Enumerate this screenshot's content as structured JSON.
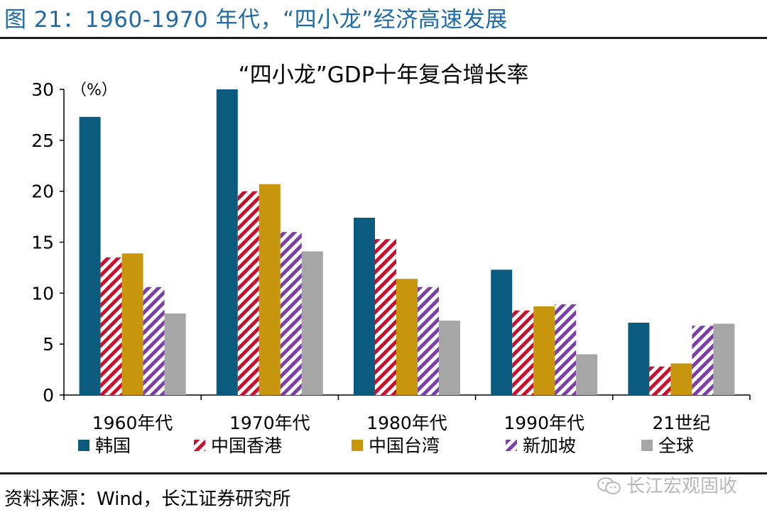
{
  "figure": {
    "title": "图 21：1960-1970 年代，“四小龙”经济高速发展",
    "source": "资料来源：Wind，长江证券研究所",
    "watermark": "长江宏观固收"
  },
  "colors": {
    "title": "#1f6aa8",
    "korea": "#0b5b7e",
    "hongkong": "#c8102e",
    "taiwan": "#c8960c",
    "singapore": "#7b3fa8",
    "world": "#a6a6a6"
  },
  "chart_data": {
    "type": "bar",
    "title": "“四小龙”GDP十年复合增长率",
    "ylabel": "（%）",
    "xlabel": "",
    "ylim": [
      0,
      30
    ],
    "yticks": [
      0,
      5,
      10,
      15,
      20,
      25,
      30
    ],
    "categories": [
      "1960年代",
      "1970年代",
      "1980年代",
      "1990年代",
      "21世纪"
    ],
    "series": [
      {
        "name": "韩国",
        "pattern": "solid",
        "color": "#0b5b7e",
        "values": [
          27.3,
          30.0,
          17.4,
          12.3,
          7.1
        ]
      },
      {
        "name": "中国香港",
        "pattern": "hatch",
        "color": "#c8102e",
        "values": [
          13.5,
          20.0,
          15.3,
          8.3,
          2.8
        ]
      },
      {
        "name": "中国台湾",
        "pattern": "solid",
        "color": "#c8960c",
        "values": [
          13.9,
          20.7,
          11.4,
          8.7,
          3.1
        ]
      },
      {
        "name": "新加坡",
        "pattern": "hatch",
        "color": "#7b3fa8",
        "values": [
          10.6,
          16.0,
          10.6,
          8.9,
          6.8
        ]
      },
      {
        "name": "全球",
        "pattern": "solid",
        "color": "#a6a6a6",
        "values": [
          8.0,
          14.1,
          7.3,
          4.0,
          7.0
        ]
      }
    ],
    "legend_position": "bottom"
  }
}
